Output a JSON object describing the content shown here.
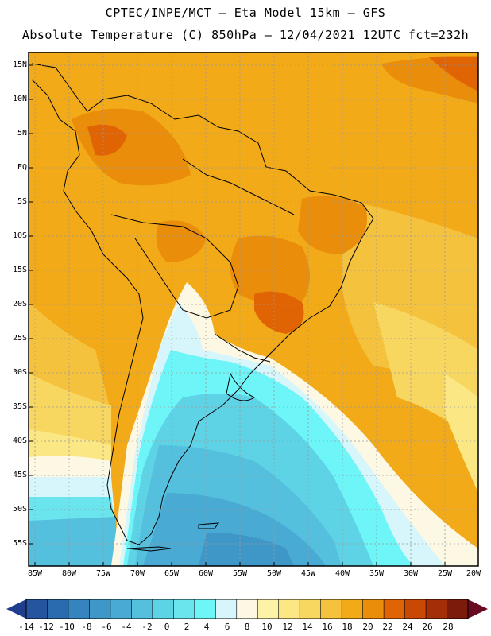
{
  "header": {
    "line1": "CPTEC/INPE/MCT —  Eta Model 15km — GFS",
    "line2": "Absolute Temperature (C) 850hPa — 12/04/2021 12UTC fct=232h"
  },
  "axes": {
    "lat_labels": [
      "15N",
      "10N",
      "5N",
      "EQ",
      "5S",
      "10S",
      "15S",
      "20S",
      "25S",
      "30S",
      "35S",
      "40S",
      "45S",
      "50S",
      "55S"
    ],
    "lon_labels": [
      "85W",
      "80W",
      "75W",
      "70W",
      "65W",
      "60W",
      "55W",
      "50W",
      "45W",
      "40W",
      "35W",
      "30W",
      "25W",
      "20W"
    ]
  },
  "legend": {
    "labels": [
      "-14",
      "-12",
      "-10",
      "-8",
      "-6",
      "-4",
      "-2",
      "0",
      "2",
      "4",
      "6",
      "8",
      "10",
      "12",
      "14",
      "16",
      "18",
      "20",
      "22",
      "24",
      "26",
      "28"
    ],
    "colors": [
      "#1f3f8e",
      "#24559e",
      "#2a6aae",
      "#3583bf",
      "#3f97c8",
      "#49aad3",
      "#55c0de",
      "#5fd3e6",
      "#6ae5ee",
      "#6ef5f8",
      "#d6f6fb",
      "#fdf8e3",
      "#fdf3a6",
      "#fbe784",
      "#f8d760",
      "#f5c23e",
      "#f2aa18",
      "#ea8d0a",
      "#e06404",
      "#c94804",
      "#a32e08",
      "#7c1a0c",
      "#690a20"
    ]
  }
}
